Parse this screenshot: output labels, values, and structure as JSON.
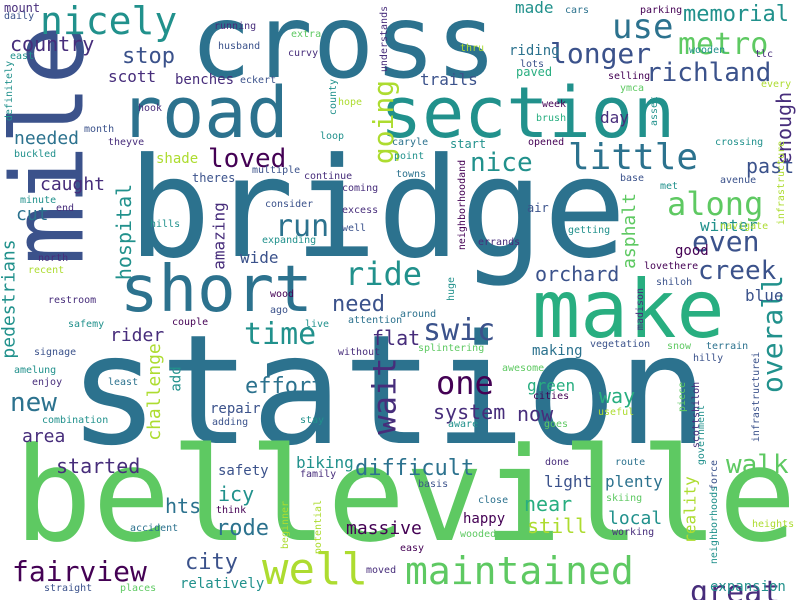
{
  "palette": [
    "#440154",
    "#472d7b",
    "#3b528b",
    "#2c728e",
    "#21918c",
    "#28ae80",
    "#5ec962",
    "#addc30",
    "#fde725"
  ],
  "words": [
    {
      "text": "station",
      "color": "#2c728e"
    },
    {
      "text": "belleville",
      "color": "#5ec962"
    },
    {
      "text": "bridge",
      "color": "#2c728e"
    },
    {
      "text": "cross",
      "color": "#2c728e"
    },
    {
      "text": "mile",
      "color": "#3b528b"
    },
    {
      "text": "road",
      "color": "#2c728e"
    },
    {
      "text": "section",
      "color": "#21918c"
    },
    {
      "text": "make",
      "color": "#28ae80"
    },
    {
      "text": "short",
      "color": "#2c728e"
    },
    {
      "text": "nicely",
      "color": "#21918c"
    },
    {
      "text": "well",
      "color": "#addc30"
    },
    {
      "text": "maintained",
      "color": "#5ec962"
    },
    {
      "text": "fairview",
      "color": "#440154"
    },
    {
      "text": "great",
      "color": "#472d7b"
    },
    {
      "text": "metro",
      "color": "#5ec962"
    },
    {
      "text": "little",
      "color": "#2c728e"
    },
    {
      "text": "use",
      "color": "#2c728e"
    },
    {
      "text": "longer",
      "color": "#3b528b"
    },
    {
      "text": "memorial",
      "color": "#21918c"
    },
    {
      "text": "richland",
      "color": "#3b528b"
    },
    {
      "text": "along",
      "color": "#5ec962"
    },
    {
      "text": "even",
      "color": "#3b528b"
    },
    {
      "text": "ride",
      "color": "#21918c"
    },
    {
      "text": "run",
      "color": "#2c728e"
    },
    {
      "text": "creek",
      "color": "#3b528b"
    },
    {
      "text": "swic",
      "color": "#3b528b"
    },
    {
      "text": "time",
      "color": "#21918c"
    },
    {
      "text": "one",
      "color": "#440154"
    },
    {
      "text": "wait",
      "color": "#472d7b"
    },
    {
      "text": "overall",
      "color": "#21918c"
    },
    {
      "text": "loved",
      "color": "#440154"
    },
    {
      "text": "going",
      "color": "#addc30"
    },
    {
      "text": "nice",
      "color": "#21918c"
    },
    {
      "text": "walk",
      "color": "#5ec962"
    },
    {
      "text": "difficult",
      "color": "#2c728e"
    },
    {
      "text": "need",
      "color": "#3b528b"
    },
    {
      "text": "orchard",
      "color": "#3b528b"
    },
    {
      "text": "new",
      "color": "#2c728e"
    },
    {
      "text": "effort",
      "color": "#2c728e"
    },
    {
      "text": "stop",
      "color": "#3b528b"
    },
    {
      "text": "country",
      "color": "#472d7b"
    },
    {
      "text": "started",
      "color": "#472d7b"
    },
    {
      "text": "city",
      "color": "#3b528b"
    },
    {
      "text": "rode",
      "color": "#2c728e"
    },
    {
      "text": "system",
      "color": "#472d7b"
    },
    {
      "text": "enough",
      "color": "#472d7b"
    },
    {
      "text": "hospital",
      "color": "#21918c"
    },
    {
      "text": "past",
      "color": "#3b528b"
    },
    {
      "text": "needed",
      "color": "#2c728e"
    },
    {
      "text": "caught",
      "color": "#472d7b"
    },
    {
      "text": "area",
      "color": "#472d7b"
    },
    {
      "text": "flat",
      "color": "#472d7b"
    },
    {
      "text": "near",
      "color": "#28ae80"
    },
    {
      "text": "still",
      "color": "#addc30"
    },
    {
      "text": "now",
      "color": "#472d7b"
    },
    {
      "text": "way",
      "color": "#28ae80"
    },
    {
      "text": "local",
      "color": "#21918c"
    },
    {
      "text": "hts",
      "color": "#2c728e"
    },
    {
      "text": "icy",
      "color": "#21918c"
    },
    {
      "text": "pedestrians",
      "color": "#21918c"
    },
    {
      "text": "rider",
      "color": "#472d7b"
    },
    {
      "text": "challenge",
      "color": "#addc30"
    },
    {
      "text": "asphalt",
      "color": "#5ec962"
    },
    {
      "text": "reality",
      "color": "#addc30"
    },
    {
      "text": "scott",
      "color": "#472d7b"
    },
    {
      "text": "trails",
      "color": "#3b528b"
    },
    {
      "text": "cut",
      "color": "#2c728e"
    },
    {
      "text": "amazing",
      "color": "#472d7b"
    },
    {
      "text": "wide",
      "color": "#3b528b"
    },
    {
      "text": "biking",
      "color": "#21918c"
    },
    {
      "text": "blue",
      "color": "#3b528b"
    },
    {
      "text": "winter",
      "color": "#21918c"
    },
    {
      "text": "plenty",
      "color": "#2c728e"
    },
    {
      "text": "massive",
      "color": "#440154"
    },
    {
      "text": "made",
      "color": "#21918c"
    },
    {
      "text": "day",
      "color": "#472d7b"
    },
    {
      "text": "green",
      "color": "#28ae80"
    },
    {
      "text": "light",
      "color": "#3b528b"
    },
    {
      "text": "happy",
      "color": "#440154"
    },
    {
      "text": "repair",
      "color": "#3b528b"
    },
    {
      "text": "making",
      "color": "#2c728e"
    },
    {
      "text": "shade",
      "color": "#addc30"
    },
    {
      "text": "riding",
      "color": "#2c728e"
    },
    {
      "text": "good",
      "color": "#440154"
    },
    {
      "text": "add",
      "color": "#21918c"
    },
    {
      "text": "safety",
      "color": "#3b528b"
    },
    {
      "text": "benches",
      "color": "#472d7b"
    },
    {
      "text": "paved",
      "color": "#28ae80"
    },
    {
      "text": "expansion",
      "color": "#21918c"
    },
    {
      "text": "relatively",
      "color": "#21918c"
    },
    {
      "text": "mount",
      "color": "#472d7b"
    },
    {
      "text": "daily",
      "color": "#3b528b"
    },
    {
      "text": "east",
      "color": "#21918c"
    },
    {
      "text": "definitely",
      "color": "#21918c"
    },
    {
      "text": "buckled",
      "color": "#21918c"
    },
    {
      "text": "running",
      "color": "#472d7b"
    },
    {
      "text": "husband",
      "color": "#3b528b"
    },
    {
      "text": "extra",
      "color": "#5ec962"
    },
    {
      "text": "curvy",
      "color": "#472d7b"
    },
    {
      "text": "eckert",
      "color": "#3b528b"
    },
    {
      "text": "understands",
      "color": "#472d7b"
    },
    {
      "text": "thru",
      "color": "#addc30"
    },
    {
      "text": "lots",
      "color": "#3b528b"
    },
    {
      "text": "cars",
      "color": "#2c728e"
    },
    {
      "text": "parking",
      "color": "#440154"
    },
    {
      "text": "wooden",
      "color": "#21918c"
    },
    {
      "text": "tlc",
      "color": "#472d7b"
    },
    {
      "text": "ymca",
      "color": "#5ec962"
    },
    {
      "text": "selling",
      "color": "#440154"
    },
    {
      "text": "every",
      "color": "#addc30"
    },
    {
      "text": "hook",
      "color": "#472d7b"
    },
    {
      "text": "county",
      "color": "#21918c"
    },
    {
      "text": "hope",
      "color": "#addc30"
    },
    {
      "text": "week",
      "color": "#440154"
    },
    {
      "text": "brush",
      "color": "#28ae80"
    },
    {
      "text": "asset",
      "color": "#21918c"
    },
    {
      "text": "month",
      "color": "#3b528b"
    },
    {
      "text": "theyve",
      "color": "#472d7b"
    },
    {
      "text": "loop",
      "color": "#21918c"
    },
    {
      "text": "caryle",
      "color": "#2c728e"
    },
    {
      "text": "start",
      "color": "#21918c"
    },
    {
      "text": "opened",
      "color": "#440154"
    },
    {
      "text": "crossing",
      "color": "#21918c"
    },
    {
      "text": "infrastructure",
      "color": "#addc30"
    },
    {
      "text": "point",
      "color": "#21918c"
    },
    {
      "text": "theres",
      "color": "#3b528b"
    },
    {
      "text": "multiple",
      "color": "#3b528b"
    },
    {
      "text": "continue",
      "color": "#472d7b"
    },
    {
      "text": "towns",
      "color": "#2c728e"
    },
    {
      "text": "base",
      "color": "#3b528b"
    },
    {
      "text": "met",
      "color": "#21918c"
    },
    {
      "text": "avenue",
      "color": "#3b528b"
    },
    {
      "text": "coming",
      "color": "#472d7b"
    },
    {
      "text": "neighborhoodand",
      "color": "#440154"
    },
    {
      "text": "consider",
      "color": "#3b528b"
    },
    {
      "text": "excess",
      "color": "#472d7b"
    },
    {
      "text": "air",
      "color": "#3b528b"
    },
    {
      "text": "navigate",
      "color": "#addc30"
    },
    {
      "text": "minute",
      "color": "#21918c"
    },
    {
      "text": "end",
      "color": "#472d7b"
    },
    {
      "text": "hills",
      "color": "#21918c"
    },
    {
      "text": "well",
      "color": "#3b528b"
    },
    {
      "text": "getting",
      "color": "#21918c"
    },
    {
      "text": "lovethere",
      "color": "#440154"
    },
    {
      "text": "north",
      "color": "#472d7b"
    },
    {
      "text": "expanding",
      "color": "#21918c"
    },
    {
      "text": "errands",
      "color": "#472d7b"
    },
    {
      "text": "shiloh",
      "color": "#3b528b"
    },
    {
      "text": "recent",
      "color": "#addc30"
    },
    {
      "text": "wood",
      "color": "#440154"
    },
    {
      "text": "huge",
      "color": "#21918c"
    },
    {
      "text": "madison",
      "color": "#472d7b"
    },
    {
      "text": "restroom",
      "color": "#472d7b"
    },
    {
      "text": "ago",
      "color": "#3b528b"
    },
    {
      "text": "around",
      "color": "#2c728e"
    },
    {
      "text": "safemy",
      "color": "#21918c"
    },
    {
      "text": "couple",
      "color": "#440154"
    },
    {
      "text": "live",
      "color": "#21918c"
    },
    {
      "text": "attention",
      "color": "#2c728e"
    },
    {
      "text": "signage",
      "color": "#3b528b"
    },
    {
      "text": "without",
      "color": "#472d7b"
    },
    {
      "text": "splintering",
      "color": "#5ec962"
    },
    {
      "text": "vegetation",
      "color": "#3b528b"
    },
    {
      "text": "snow",
      "color": "#5ec962"
    },
    {
      "text": "terrain",
      "color": "#2c728e"
    },
    {
      "text": "hilly",
      "color": "#3b528b"
    },
    {
      "text": "infrastructurei",
      "color": "#3b528b"
    },
    {
      "text": "amelung",
      "color": "#21918c"
    },
    {
      "text": "enjoy",
      "color": "#472d7b"
    },
    {
      "text": "least",
      "color": "#2c728e"
    },
    {
      "text": "awesome",
      "color": "#5ec962"
    },
    {
      "text": "cities",
      "color": "#440154"
    },
    {
      "text": "useful",
      "color": "#addc30"
    },
    {
      "text": "piece",
      "color": "#5ec962"
    },
    {
      "text": "government",
      "color": "#21918c"
    },
    {
      "text": "scottshiloh",
      "color": "#472d7b"
    },
    {
      "text": "combination",
      "color": "#21918c"
    },
    {
      "text": "adding",
      "color": "#3b528b"
    },
    {
      "text": "stay",
      "color": "#21918c"
    },
    {
      "text": "aware",
      "color": "#21918c"
    },
    {
      "text": "goes",
      "color": "#5ec962"
    },
    {
      "text": "done",
      "color": "#472d7b"
    },
    {
      "text": "route",
      "color": "#2c728e"
    },
    {
      "text": "force",
      "color": "#3b528b"
    },
    {
      "text": "neighborhoods",
      "color": "#21918c"
    },
    {
      "text": "family",
      "color": "#472d7b"
    },
    {
      "text": "basis",
      "color": "#3b528b"
    },
    {
      "text": "skiing",
      "color": "#5ec962"
    },
    {
      "text": "heights",
      "color": "#addc30"
    },
    {
      "text": "accident",
      "color": "#2c728e"
    },
    {
      "text": "think",
      "color": "#440154"
    },
    {
      "text": "beginner",
      "color": "#addc30"
    },
    {
      "text": "potential",
      "color": "#addc30"
    },
    {
      "text": "close",
      "color": "#2c728e"
    },
    {
      "text": "wooded",
      "color": "#5ec962"
    },
    {
      "text": "working",
      "color": "#472d7b"
    },
    {
      "text": "easy",
      "color": "#440154"
    },
    {
      "text": "moved",
      "color": "#472d7b"
    },
    {
      "text": "straight",
      "color": "#3b528b"
    },
    {
      "text": "places",
      "color": "#5ec962"
    }
  ]
}
